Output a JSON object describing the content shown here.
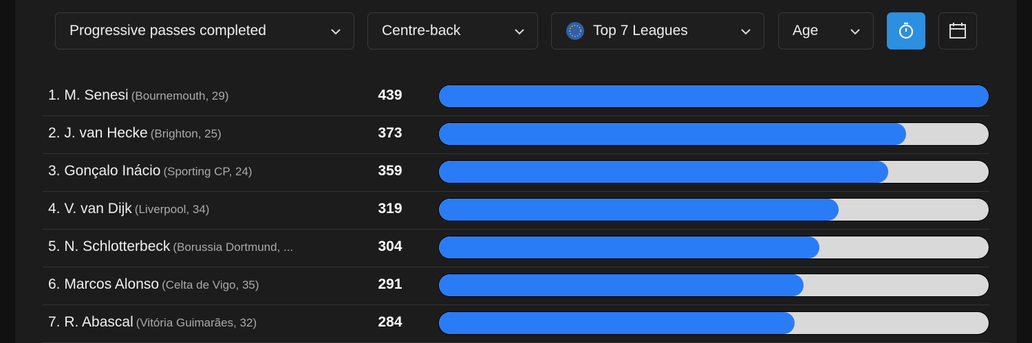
{
  "filters": {
    "metric": "Progressive passes completed",
    "position": "Centre-back",
    "league": "Top 7 Leagues",
    "age": "Age"
  },
  "rows": [
    {
      "player": "1. M. Senesi",
      "detail": "(Bournemouth, 29)",
      "value": 439
    },
    {
      "player": "2. J. van Hecke",
      "detail": "(Brighton, 25)",
      "value": 373
    },
    {
      "player": "3. Gonçalo Inácio",
      "detail": "(Sporting CP, 24)",
      "value": 359
    },
    {
      "player": "4. V. van Dijk",
      "detail": "(Liverpool, 34)",
      "value": 319
    },
    {
      "player": "5. N. Schlotterbeck",
      "detail": "(Borussia Dortmund, ...",
      "value": 304
    },
    {
      "player": "6. Marcos Alonso",
      "detail": "(Celta de Vigo, 35)",
      "value": 291
    },
    {
      "player": "7. R. Abascal",
      "detail": "(Vitória Guimarães, 32)",
      "value": 284
    }
  ]
}
